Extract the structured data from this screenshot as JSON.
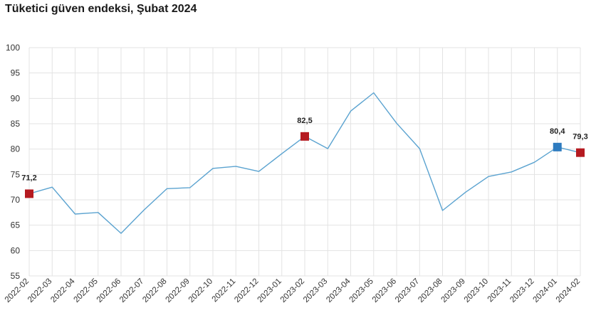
{
  "title": "Tüketici güven endeksi, Şubat 2024",
  "chart_data": {
    "type": "line",
    "title": "Tüketici güven endeksi, Şubat 2024",
    "xlabel": "",
    "ylabel": "",
    "ylim": [
      55,
      100
    ],
    "yticks": [
      55,
      60,
      65,
      70,
      75,
      80,
      85,
      90,
      95,
      100
    ],
    "grid": true,
    "categories": [
      "2022-02",
      "2022-03",
      "2022-04",
      "2022-05",
      "2022-06",
      "2022-07",
      "2022-08",
      "2022-09",
      "2022-10",
      "2022-11",
      "2022-12",
      "2023-01",
      "2023-02",
      "2023-03",
      "2023-04",
      "2023-05",
      "2023-06",
      "2023-07",
      "2023-08",
      "2023-09",
      "2023-10",
      "2023-11",
      "2023-12",
      "2024-01",
      "2024-02"
    ],
    "series": [
      {
        "color": "#5ba3d0",
        "values": [
          71.2,
          72.5,
          67.2,
          67.5,
          63.4,
          68.0,
          72.2,
          72.4,
          76.2,
          76.6,
          75.6,
          79.1,
          82.5,
          80.1,
          87.5,
          91.1,
          85.1,
          80.1,
          67.9,
          71.5,
          74.6,
          75.5,
          77.4,
          80.4,
          79.3
        ]
      }
    ],
    "highlights": [
      {
        "index": 0,
        "label": "71,2",
        "color": "#b51a20"
      },
      {
        "index": 12,
        "label": "82,5",
        "color": "#b51a20"
      },
      {
        "index": 23,
        "label": "80,4",
        "color": "#2e7bbf"
      },
      {
        "index": 24,
        "label": "79,3",
        "color": "#b51a20"
      }
    ]
  }
}
